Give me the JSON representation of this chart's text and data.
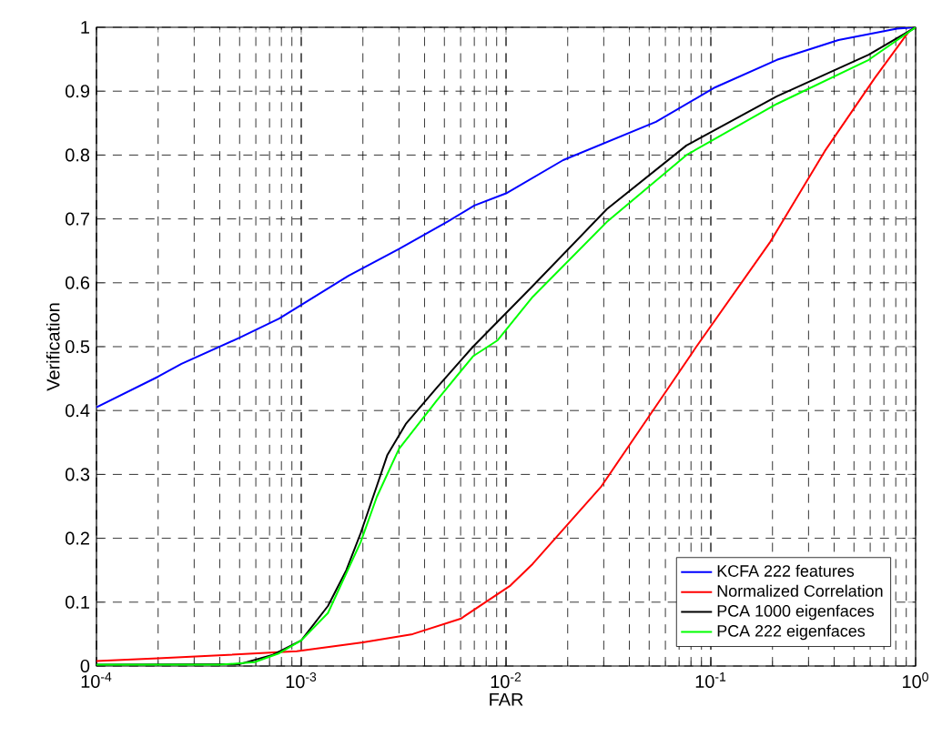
{
  "chart_data": {
    "type": "line",
    "xlabel": "FAR",
    "ylabel": "Verification",
    "log": "x",
    "grid": true,
    "legend": "bottom right",
    "xlim": [
      0.0001,
      1
    ],
    "ylim": [
      0,
      1
    ],
    "xticks": [
      {
        "value": 0.0001,
        "label": "10$^{-4}$"
      },
      {
        "value": 0.001,
        "label": "10$^{-3}$"
      },
      {
        "value": 0.01,
        "label": "10$^{-2}$"
      },
      {
        "value": 0.1,
        "label": "10$^{-1}$"
      },
      {
        "value": 1,
        "label": "10$^{0}$"
      }
    ],
    "yticks": [
      0,
      0.1,
      0.2,
      0.3,
      0.4,
      0.5,
      0.6,
      0.7,
      0.8,
      0.9,
      1
    ],
    "series": [
      {
        "name": "KCFA 222 features",
        "color": "#0000ff",
        "x": [
          0.0001,
          0.0002,
          0.00026,
          0.0005,
          0.00078,
          0.0017,
          0.003,
          0.0052,
          0.007,
          0.01,
          0.019,
          0.054,
          0.105,
          0.21,
          0.42,
          0.81,
          1
        ],
        "values": [
          0.405,
          0.453,
          0.473,
          0.514,
          0.544,
          0.611,
          0.653,
          0.696,
          0.721,
          0.74,
          0.792,
          0.852,
          0.906,
          0.949,
          0.98,
          0.998,
          1
        ]
      },
      {
        "name": "Normalized Correlation",
        "color": "#ff0000",
        "x": [
          0.0001,
          0.0002,
          0.00095,
          0.002,
          0.0035,
          0.006,
          0.0105,
          0.0135,
          0.029,
          0.054,
          0.085,
          0.195,
          0.36,
          0.63,
          0.93,
          1
        ],
        "values": [
          0.008,
          0.012,
          0.023,
          0.037,
          0.05,
          0.074,
          0.126,
          0.16,
          0.28,
          0.407,
          0.5,
          0.664,
          0.806,
          0.92,
          0.994,
          1
        ]
      },
      {
        "name": "PCA 1000 eigenfaces",
        "color": "#000000",
        "x": [
          0.0001,
          0.0005,
          0.00072,
          0.001,
          0.00135,
          0.00166,
          0.00195,
          0.00234,
          0.00263,
          0.00324,
          0.0046,
          0.0069,
          0.0135,
          0.031,
          0.076,
          0.21,
          0.59,
          1
        ],
        "values": [
          0.002,
          0.003,
          0.017,
          0.04,
          0.094,
          0.15,
          0.208,
          0.282,
          0.33,
          0.379,
          0.436,
          0.5,
          0.595,
          0.715,
          0.815,
          0.892,
          0.957,
          1
        ]
      },
      {
        "name": "PCA 222 eigenfaces",
        "color": "#00ff00",
        "x": [
          0.0001,
          0.0004,
          0.00059,
          0.00078,
          0.001,
          0.00135,
          0.00195,
          0.00234,
          0.003,
          0.0046,
          0.0069,
          0.0091,
          0.0135,
          0.031,
          0.076,
          0.21,
          0.59,
          1
        ],
        "values": [
          0.002,
          0.002,
          0.006,
          0.02,
          0.04,
          0.083,
          0.194,
          0.265,
          0.34,
          0.416,
          0.485,
          0.51,
          0.578,
          0.695,
          0.8,
          0.88,
          0.949,
          1
        ]
      }
    ]
  }
}
